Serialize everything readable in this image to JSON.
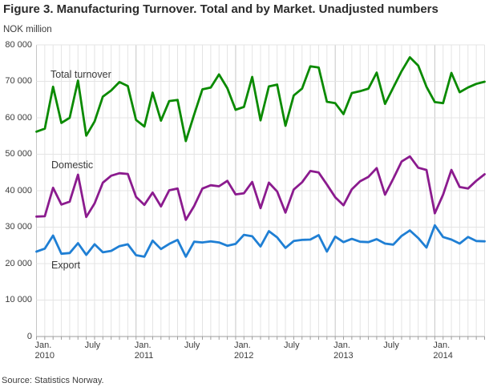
{
  "header": {
    "title": "Figure 3. Manufacturing Turnover. Total and by Market. Unadjusted numbers",
    "unit_label": "NOK million"
  },
  "footer": {
    "source": "Source: Statistics Norway."
  },
  "colors": {
    "total": "#0a8a00",
    "domestic": "#8b1b8e",
    "export": "#1f7fd4",
    "grid": "#e4e4e4",
    "grid_major": "#c6c6c6",
    "axis": "#9e9e9e",
    "text": "#3c3c3c"
  },
  "chart_data": {
    "type": "line",
    "title": "Figure 3. Manufacturing Turnover. Total and by Market. Unadjusted numbers",
    "xlabel": "",
    "ylabel": "NOK million",
    "ylim": [
      0,
      80000
    ],
    "ytick_step": 10000,
    "ytick_labels": [
      "0",
      "10 000",
      "20 000",
      "30 000",
      "40 000",
      "50 000",
      "60 000",
      "70 000",
      "80 000"
    ],
    "grid": true,
    "legend_position": "inline-annotations",
    "x_frequency": "monthly",
    "x_start": "Jan 2010",
    "x_end": "Jul 2014",
    "x_tick_labels": [
      {
        "top": "Jan.",
        "bottom": "2010",
        "month_index": 0
      },
      {
        "top": "July",
        "bottom": "",
        "month_index": 6
      },
      {
        "top": "Jan.",
        "bottom": "2011",
        "month_index": 12
      },
      {
        "top": "July",
        "bottom": "",
        "month_index": 18
      },
      {
        "top": "Jan.",
        "bottom": "2012",
        "month_index": 24
      },
      {
        "top": "July",
        "bottom": "",
        "month_index": 30
      },
      {
        "top": "Jan.",
        "bottom": "2013",
        "month_index": 36
      },
      {
        "top": "July",
        "bottom": "",
        "month_index": 42
      },
      {
        "top": "Jan.",
        "bottom": "2014",
        "month_index": 48
      }
    ],
    "months": [
      "Jan 2010",
      "Feb 2010",
      "Mar 2010",
      "Apr 2010",
      "May 2010",
      "Jun 2010",
      "Jul 2010",
      "Aug 2010",
      "Sep 2010",
      "Oct 2010",
      "Nov 2010",
      "Dec 2010",
      "Jan 2011",
      "Feb 2011",
      "Mar 2011",
      "Apr 2011",
      "May 2011",
      "Jun 2011",
      "Jul 2011",
      "Aug 2011",
      "Sep 2011",
      "Oct 2011",
      "Nov 2011",
      "Dec 2011",
      "Jan 2012",
      "Feb 2012",
      "Mar 2012",
      "Apr 2012",
      "May 2012",
      "Jun 2012",
      "Jul 2012",
      "Aug 2012",
      "Sep 2012",
      "Oct 2012",
      "Nov 2012",
      "Dec 2012",
      "Jan 2013",
      "Feb 2013",
      "Mar 2013",
      "Apr 2013",
      "May 2013",
      "Jun 2013",
      "Jul 2013",
      "Aug 2013",
      "Sep 2013",
      "Oct 2013",
      "Nov 2013",
      "Dec 2013",
      "Jan 2014",
      "Feb 2014",
      "Mar 2014",
      "Apr 2014",
      "May 2014",
      "Jun 2014",
      "Jul 2014"
    ],
    "series": [
      {
        "name": "Total turnover",
        "color_key": "total",
        "values": [
          56200,
          57000,
          68500,
          58600,
          60000,
          70200,
          55100,
          59000,
          65800,
          67500,
          69800,
          68700,
          59400,
          57600,
          66900,
          59200,
          64600,
          64900,
          53600,
          60900,
          67800,
          68300,
          71900,
          68100,
          62200,
          63000,
          71200,
          59300,
          68600,
          69100,
          57800,
          66100,
          68000,
          74100,
          73800,
          64400,
          64000,
          61000,
          66800,
          67300,
          68000,
          72400,
          63800,
          68300,
          72800,
          76600,
          74300,
          68500,
          64300,
          64000,
          72300,
          67000,
          68300,
          69300,
          69900
        ]
      },
      {
        "name": "Domestic",
        "color_key": "domestic",
        "values": [
          32900,
          33000,
          40800,
          36200,
          37000,
          44400,
          32800,
          36500,
          42200,
          44100,
          44800,
          44600,
          38300,
          36100,
          39500,
          35700,
          40100,
          40600,
          32000,
          35800,
          40600,
          41500,
          41200,
          42700,
          39000,
          39300,
          42400,
          35200,
          42200,
          39800,
          34000,
          40300,
          42300,
          45400,
          45000,
          41700,
          38200,
          36000,
          40400,
          42600,
          43800,
          46200,
          38900,
          43300,
          48000,
          49400,
          46300,
          45700,
          33800,
          38900,
          45700,
          41000,
          40600,
          42700,
          44500
        ]
      },
      {
        "name": "Export",
        "color_key": "export",
        "values": [
          23300,
          24100,
          27700,
          22700,
          22900,
          25600,
          22400,
          25300,
          23100,
          23500,
          24800,
          25300,
          22300,
          21900,
          26300,
          24000,
          25400,
          26500,
          21900,
          26000,
          25800,
          26100,
          25800,
          24900,
          25400,
          27900,
          27500,
          24700,
          28900,
          27200,
          24300,
          26200,
          26500,
          26600,
          27800,
          23300,
          27400,
          25900,
          26800,
          26000,
          25900,
          26700,
          25500,
          25200,
          27600,
          29100,
          27000,
          24400,
          30500,
          27300,
          26600,
          25500,
          27300,
          26200,
          26100
        ]
      }
    ]
  }
}
